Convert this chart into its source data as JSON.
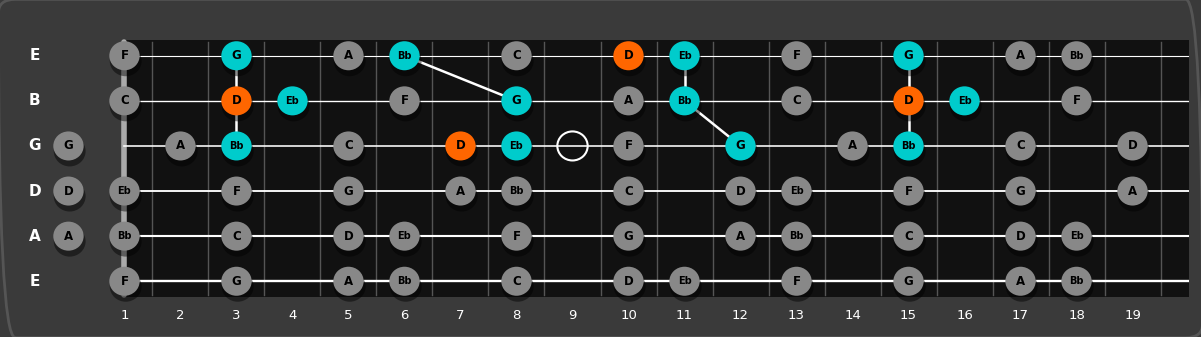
{
  "bg_color": "#3a3a3a",
  "fretboard_color": "#111111",
  "string_color": "#ffffff",
  "fret_color": "#555555",
  "nut_color": "#999999",
  "string_labels": [
    "E",
    "B",
    "G",
    "D",
    "A",
    "E"
  ],
  "fret_numbers": [
    1,
    2,
    3,
    4,
    5,
    6,
    7,
    8,
    9,
    10,
    11,
    12,
    13,
    14,
    15,
    16,
    17,
    18,
    19
  ],
  "num_frets": 19,
  "num_strings": 6,
  "note_color_default": "#888888",
  "note_color_cyan": "#00cccc",
  "note_color_orange": "#ff6600",
  "note_color_open": "#ffffff",
  "notes": [
    {
      "string": 0,
      "fret": 1,
      "note": "F",
      "color": "default"
    },
    {
      "string": 0,
      "fret": 3,
      "note": "G",
      "color": "cyan"
    },
    {
      "string": 0,
      "fret": 5,
      "note": "A",
      "color": "default"
    },
    {
      "string": 0,
      "fret": 6,
      "note": "Bb",
      "color": "cyan"
    },
    {
      "string": 0,
      "fret": 8,
      "note": "C",
      "color": "default"
    },
    {
      "string": 0,
      "fret": 10,
      "note": "D",
      "color": "orange"
    },
    {
      "string": 0,
      "fret": 11,
      "note": "Eb",
      "color": "cyan"
    },
    {
      "string": 0,
      "fret": 13,
      "note": "F",
      "color": "default"
    },
    {
      "string": 0,
      "fret": 15,
      "note": "G",
      "color": "cyan"
    },
    {
      "string": 0,
      "fret": 17,
      "note": "A",
      "color": "default"
    },
    {
      "string": 0,
      "fret": 18,
      "note": "Bb",
      "color": "default"
    },
    {
      "string": 1,
      "fret": 1,
      "note": "C",
      "color": "default"
    },
    {
      "string": 1,
      "fret": 3,
      "note": "D",
      "color": "orange"
    },
    {
      "string": 1,
      "fret": 4,
      "note": "Eb",
      "color": "cyan"
    },
    {
      "string": 1,
      "fret": 6,
      "note": "F",
      "color": "default"
    },
    {
      "string": 1,
      "fret": 8,
      "note": "G",
      "color": "cyan"
    },
    {
      "string": 1,
      "fret": 10,
      "note": "A",
      "color": "default"
    },
    {
      "string": 1,
      "fret": 11,
      "note": "Bb",
      "color": "cyan"
    },
    {
      "string": 1,
      "fret": 13,
      "note": "C",
      "color": "default"
    },
    {
      "string": 1,
      "fret": 15,
      "note": "D",
      "color": "orange"
    },
    {
      "string": 1,
      "fret": 16,
      "note": "Eb",
      "color": "cyan"
    },
    {
      "string": 1,
      "fret": 18,
      "note": "F",
      "color": "default"
    },
    {
      "string": 2,
      "fret": 0,
      "note": "G",
      "color": "default"
    },
    {
      "string": 2,
      "fret": 2,
      "note": "A",
      "color": "default"
    },
    {
      "string": 2,
      "fret": 3,
      "note": "Bb",
      "color": "cyan"
    },
    {
      "string": 2,
      "fret": 5,
      "note": "C",
      "color": "default"
    },
    {
      "string": 2,
      "fret": 7,
      "note": "D",
      "color": "orange"
    },
    {
      "string": 2,
      "fret": 8,
      "note": "Eb",
      "color": "cyan"
    },
    {
      "string": 2,
      "fret": 9,
      "note": "",
      "color": "open"
    },
    {
      "string": 2,
      "fret": 10,
      "note": "F",
      "color": "default"
    },
    {
      "string": 2,
      "fret": 12,
      "note": "G",
      "color": "cyan"
    },
    {
      "string": 2,
      "fret": 14,
      "note": "A",
      "color": "default"
    },
    {
      "string": 2,
      "fret": 15,
      "note": "Bb",
      "color": "cyan"
    },
    {
      "string": 2,
      "fret": 17,
      "note": "C",
      "color": "default"
    },
    {
      "string": 2,
      "fret": 19,
      "note": "D",
      "color": "default"
    },
    {
      "string": 3,
      "fret": 0,
      "note": "D",
      "color": "default"
    },
    {
      "string": 3,
      "fret": 1,
      "note": "Eb",
      "color": "default"
    },
    {
      "string": 3,
      "fret": 3,
      "note": "F",
      "color": "default"
    },
    {
      "string": 3,
      "fret": 5,
      "note": "G",
      "color": "default"
    },
    {
      "string": 3,
      "fret": 7,
      "note": "A",
      "color": "default"
    },
    {
      "string": 3,
      "fret": 8,
      "note": "Bb",
      "color": "default"
    },
    {
      "string": 3,
      "fret": 10,
      "note": "C",
      "color": "default"
    },
    {
      "string": 3,
      "fret": 12,
      "note": "D",
      "color": "default"
    },
    {
      "string": 3,
      "fret": 13,
      "note": "Eb",
      "color": "default"
    },
    {
      "string": 3,
      "fret": 15,
      "note": "F",
      "color": "default"
    },
    {
      "string": 3,
      "fret": 17,
      "note": "G",
      "color": "default"
    },
    {
      "string": 3,
      "fret": 19,
      "note": "A",
      "color": "default"
    },
    {
      "string": 4,
      "fret": 0,
      "note": "A",
      "color": "default"
    },
    {
      "string": 4,
      "fret": 1,
      "note": "Bb",
      "color": "default"
    },
    {
      "string": 4,
      "fret": 3,
      "note": "C",
      "color": "default"
    },
    {
      "string": 4,
      "fret": 5,
      "note": "D",
      "color": "default"
    },
    {
      "string": 4,
      "fret": 6,
      "note": "Eb",
      "color": "default"
    },
    {
      "string": 4,
      "fret": 8,
      "note": "F",
      "color": "default"
    },
    {
      "string": 4,
      "fret": 10,
      "note": "G",
      "color": "default"
    },
    {
      "string": 4,
      "fret": 12,
      "note": "A",
      "color": "default"
    },
    {
      "string": 4,
      "fret": 13,
      "note": "Bb",
      "color": "default"
    },
    {
      "string": 4,
      "fret": 15,
      "note": "C",
      "color": "default"
    },
    {
      "string": 4,
      "fret": 17,
      "note": "D",
      "color": "default"
    },
    {
      "string": 4,
      "fret": 18,
      "note": "Eb",
      "color": "default"
    },
    {
      "string": 5,
      "fret": 1,
      "note": "F",
      "color": "default"
    },
    {
      "string": 5,
      "fret": 3,
      "note": "G",
      "color": "default"
    },
    {
      "string": 5,
      "fret": 5,
      "note": "A",
      "color": "default"
    },
    {
      "string": 5,
      "fret": 6,
      "note": "Bb",
      "color": "default"
    },
    {
      "string": 5,
      "fret": 8,
      "note": "C",
      "color": "default"
    },
    {
      "string": 5,
      "fret": 10,
      "note": "D",
      "color": "default"
    },
    {
      "string": 5,
      "fret": 11,
      "note": "Eb",
      "color": "default"
    },
    {
      "string": 5,
      "fret": 13,
      "note": "F",
      "color": "default"
    },
    {
      "string": 5,
      "fret": 15,
      "note": "G",
      "color": "default"
    },
    {
      "string": 5,
      "fret": 17,
      "note": "A",
      "color": "default"
    },
    {
      "string": 5,
      "fret": 18,
      "note": "Bb",
      "color": "default"
    }
  ],
  "connector_lines": [
    {
      "from_string": 0,
      "from_fret": 3,
      "to_string": 1,
      "to_fret": 3
    },
    {
      "from_string": 1,
      "from_fret": 3,
      "to_string": 2,
      "to_fret": 3
    },
    {
      "from_string": 0,
      "from_fret": 6,
      "to_string": 1,
      "to_fret": 8
    },
    {
      "from_string": 0,
      "from_fret": 11,
      "to_string": 1,
      "to_fret": 11
    },
    {
      "from_string": 1,
      "from_fret": 11,
      "to_string": 2,
      "to_fret": 12
    },
    {
      "from_string": 0,
      "from_fret": 15,
      "to_string": 1,
      "to_fret": 15
    },
    {
      "from_string": 1,
      "from_fret": 15,
      "to_string": 2,
      "to_fret": 15
    }
  ]
}
